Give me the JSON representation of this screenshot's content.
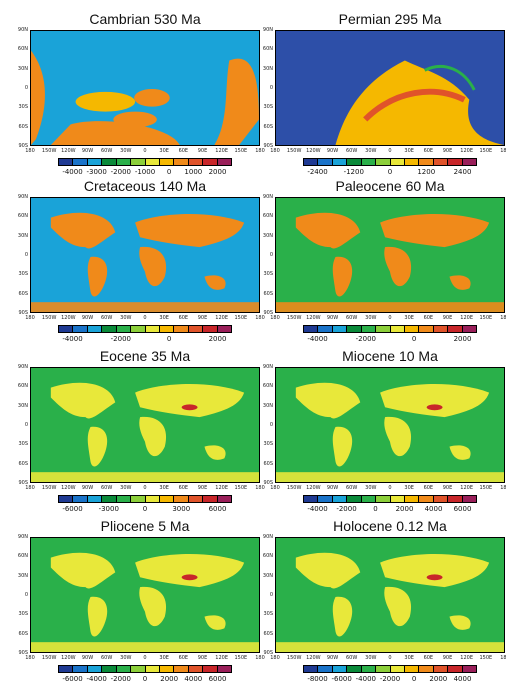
{
  "panels": [
    {
      "title": "Cambrian 530 Ma",
      "cbar": [
        "-4000",
        "-3000",
        "-2000",
        "-1000",
        "0",
        "1000",
        "2000"
      ]
    },
    {
      "title": "Permian 295 Ma",
      "cbar": [
        "-2400",
        "-1200",
        "0",
        "1200",
        "2400"
      ]
    },
    {
      "title": "Cretaceous 140 Ma",
      "cbar": [
        "-4000",
        "-2000",
        "0",
        "2000"
      ]
    },
    {
      "title": "Paleocene 60 Ma",
      "cbar": [
        "-4000",
        "-2000",
        "0",
        "2000"
      ]
    },
    {
      "title": "Eocene 35 Ma",
      "cbar": [
        "-6000",
        "-3000",
        "0",
        "3000",
        "6000"
      ]
    },
    {
      "title": "Miocene 10 Ma",
      "cbar": [
        "-4000",
        "-2000",
        "0",
        "2000",
        "4000",
        "6000"
      ]
    },
    {
      "title": "Pliocene 5 Ma",
      "cbar": [
        "-6000",
        "-4000",
        "-2000",
        "0",
        "2000",
        "4000",
        "6000"
      ]
    },
    {
      "title": "Holocene 0.12 Ma",
      "cbar": [
        "-8000",
        "-6000",
        "-4000",
        "-2000",
        "0",
        "2000",
        "4000"
      ]
    }
  ],
  "lat_labels": [
    "90N",
    "60N",
    "30N",
    "0",
    "30S",
    "60S",
    "90S"
  ],
  "lon_labels": [
    "180",
    "150W",
    "120W",
    "90W",
    "60W",
    "30W",
    "0",
    "30E",
    "60E",
    "90E",
    "120E",
    "150E",
    "180"
  ],
  "cbar_colors": [
    "#1f3a93",
    "#1a73c9",
    "#1aa3d8",
    "#0a8a3a",
    "#2ab04a",
    "#8ccf3a",
    "#e8e83a",
    "#f5b800",
    "#f08a1a",
    "#e0532a",
    "#c8262a",
    "#9a1f5a"
  ]
}
